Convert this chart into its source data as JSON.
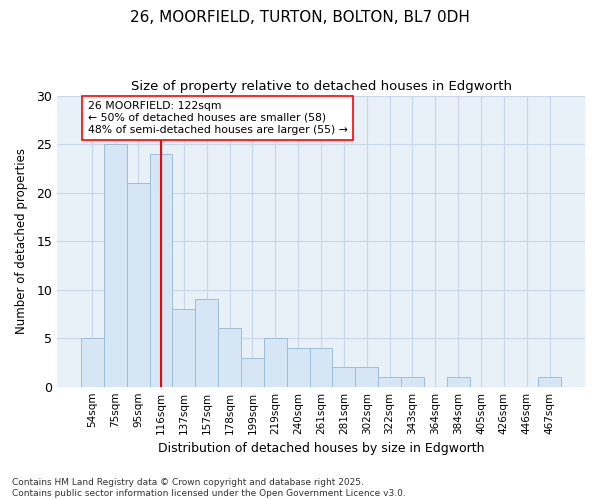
{
  "title": "26, MOORFIELD, TURTON, BOLTON, BL7 0DH",
  "subtitle": "Size of property relative to detached houses in Edgworth",
  "xlabel": "Distribution of detached houses by size in Edgworth",
  "ylabel": "Number of detached properties",
  "categories": [
    "54sqm",
    "75sqm",
    "95sqm",
    "116sqm",
    "137sqm",
    "157sqm",
    "178sqm",
    "199sqm",
    "219sqm",
    "240sqm",
    "261sqm",
    "281sqm",
    "302sqm",
    "322sqm",
    "343sqm",
    "364sqm",
    "384sqm",
    "405sqm",
    "426sqm",
    "446sqm",
    "467sqm"
  ],
  "values": [
    5,
    25,
    21,
    24,
    8,
    9,
    6,
    3,
    5,
    4,
    4,
    2,
    2,
    1,
    1,
    0,
    1,
    0,
    0,
    0,
    1
  ],
  "bar_color": "#d6e6f5",
  "bar_edge_color": "#9bbfd8",
  "vline_x": 3,
  "annotation_text": "26 MOORFIELD: 122sqm\n← 50% of detached houses are smaller (58)\n48% of semi-detached houses are larger (55) →",
  "annotation_box_color": "white",
  "annotation_box_edge_color": "red",
  "vline_color": "red",
  "ylim": [
    0,
    30
  ],
  "yticks": [
    0,
    5,
    10,
    15,
    20,
    25,
    30
  ],
  "grid_color": "#c8d8ea",
  "bg_color": "#e8f0f8",
  "footer": "Contains HM Land Registry data © Crown copyright and database right 2025.\nContains public sector information licensed under the Open Government Licence v3.0."
}
